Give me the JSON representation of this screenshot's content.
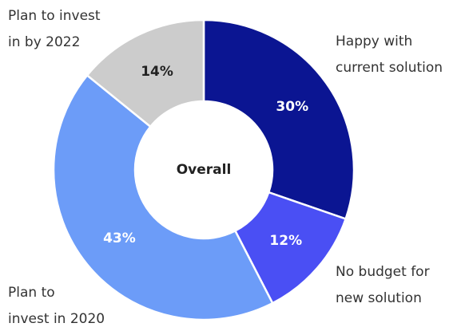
{
  "chart_data": {
    "type": "pie",
    "center_label": "Overall",
    "categories": [
      [
        "Happy with",
        "current solution"
      ],
      [
        "No budget for",
        "new solution"
      ],
      [
        "Plan to",
        "invest in 2020"
      ],
      [
        "Plan to invest",
        "in by 2022"
      ]
    ],
    "values": [
      30,
      12,
      43,
      14
    ],
    "value_labels": [
      "30%",
      "12%",
      "43%",
      "14%"
    ],
    "colors": [
      "#0b1592",
      "#4a4ff4",
      "#6c9cf8",
      "#cccccc"
    ]
  }
}
